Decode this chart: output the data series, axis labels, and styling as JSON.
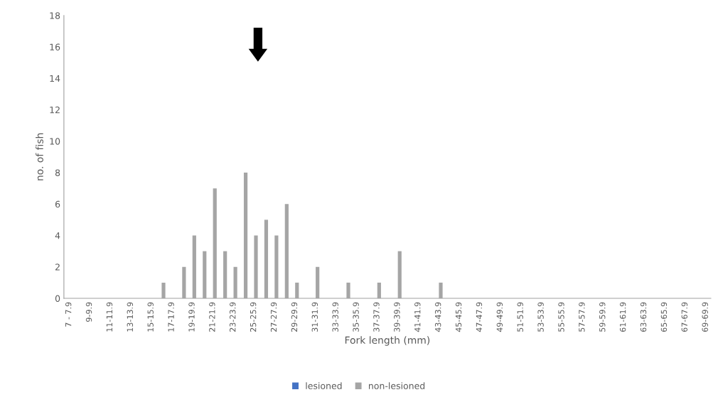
{
  "chart_data": {
    "type": "bar",
    "xlabel": "Fork length (mm)",
    "ylabel": "no. of fish",
    "categories": [
      "7 - 7.9",
      null,
      "9-9.9",
      null,
      "11-11.9",
      null,
      "13-13.9",
      null,
      "15-15.9",
      null,
      "17-17.9",
      null,
      "19-19.9",
      null,
      "21-21.9",
      null,
      "23-23.9",
      null,
      "25-25.9",
      null,
      "27-27.9",
      null,
      "29-29.9",
      null,
      "31-31.9",
      null,
      "33-33.9",
      null,
      "35-35.9",
      null,
      "37-37.9",
      null,
      "39-39.9",
      null,
      "41-41.9",
      null,
      "43-43.9",
      null,
      "45-45.9",
      null,
      "47-47.9",
      null,
      "49-49.9",
      null,
      "51-51.9",
      null,
      "53-53.9",
      null,
      "55-55.9",
      null,
      "57-57.9",
      null,
      "59-59.9",
      null,
      "61-61.9",
      null,
      "63-63.9",
      null,
      "65-65.9",
      null,
      "67-67.9",
      null,
      "69-69.9"
    ],
    "series": [
      {
        "name": "lesioned",
        "color": "#4472c4",
        "values": [
          0,
          0,
          0,
          0,
          0,
          0,
          0,
          0,
          0,
          0,
          0,
          0,
          0,
          0,
          0,
          0,
          0,
          0,
          0,
          0,
          0,
          0,
          0,
          0,
          0,
          0,
          0,
          0,
          0,
          0,
          0,
          0,
          0,
          0,
          0,
          0,
          0,
          0,
          0,
          0,
          0,
          0,
          0,
          0,
          0,
          0,
          0,
          0,
          0,
          0,
          0,
          0,
          0,
          0,
          0,
          0,
          0,
          0,
          0,
          0,
          0,
          0,
          0
        ]
      },
      {
        "name": "non-lesioned",
        "color": "#a5a5a5",
        "values": [
          0,
          0,
          0,
          0,
          0,
          0,
          0,
          0,
          0,
          1,
          0,
          2,
          4,
          3,
          7,
          3,
          2,
          8,
          4,
          5,
          4,
          6,
          1,
          0,
          2,
          0,
          0,
          1,
          0,
          0,
          1,
          0,
          3,
          0,
          0,
          0,
          1,
          0,
          0,
          0,
          0,
          0,
          0,
          0,
          0,
          0,
          0,
          0,
          0,
          0,
          0,
          0,
          0,
          0,
          0,
          0,
          0,
          0,
          0,
          0,
          0,
          0,
          0
        ]
      }
    ],
    "ylim": [
      0,
      18
    ],
    "yticks": [
      0,
      2,
      4,
      6,
      8,
      10,
      12,
      14,
      16,
      18
    ],
    "grid": false,
    "legend": "bottom"
  }
}
